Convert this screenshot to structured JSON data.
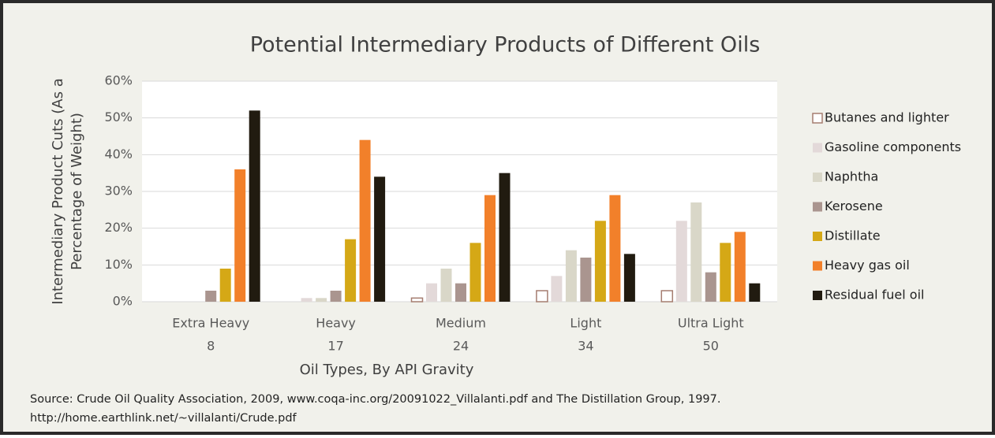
{
  "chart_data": {
    "type": "bar",
    "title": "Potential Intermediary Products of Different Oils",
    "ylabel": [
      "Intermediary Product Cuts (As a",
      "Percentage of Weight)"
    ],
    "xlabel": "Oil Types, By API Gravity",
    "source": [
      "Source: Crude Oil Quality Association, 2009, www.coqa-inc.org/20091022_Villalanti.pdf and The Distillation Group, 1997.",
      "http://home.earthlink.net/~villalanti/Crude.pdf"
    ],
    "categories": [
      [
        "Extra Heavy",
        "8"
      ],
      [
        "Heavy",
        "17"
      ],
      [
        "Medium",
        "24"
      ],
      [
        "Light",
        "34"
      ],
      [
        "Ultra Light",
        "50"
      ]
    ],
    "series": [
      {
        "name": "Butanes and lighter",
        "color": "#ffffff",
        "stroke": "#a57d70",
        "values": [
          0,
          0,
          1,
          3,
          3
        ]
      },
      {
        "name": "Gasoline components",
        "color": "#e3d9d9",
        "values": [
          0,
          1,
          5,
          7,
          22
        ]
      },
      {
        "name": "Naphtha",
        "color": "#d9d7c8",
        "values": [
          0,
          1,
          9,
          14,
          27
        ]
      },
      {
        "name": "Kerosene",
        "color": "#aa958f",
        "values": [
          3,
          3,
          5,
          12,
          8
        ]
      },
      {
        "name": "Distillate",
        "color": "#d5a816",
        "values": [
          9,
          17,
          16,
          22,
          16
        ]
      },
      {
        "name": "Heavy gas oil",
        "color": "#f2802a",
        "values": [
          36,
          44,
          29,
          29,
          19
        ]
      },
      {
        "name": "Residual fuel oil",
        "color": "#211b10",
        "values": [
          52,
          34,
          35,
          13,
          5
        ]
      }
    ],
    "ylim": [
      0,
      60
    ],
    "yticks": [
      {
        "value": 0,
        "label": "0%"
      },
      {
        "value": 10,
        "label": "10%"
      },
      {
        "value": 20,
        "label": "20%"
      },
      {
        "value": 30,
        "label": "30%"
      },
      {
        "value": 40,
        "label": "40%"
      },
      {
        "value": 50,
        "label": "50%"
      },
      {
        "value": 60,
        "label": "60%"
      }
    ],
    "grid": true,
    "legend": "right"
  }
}
